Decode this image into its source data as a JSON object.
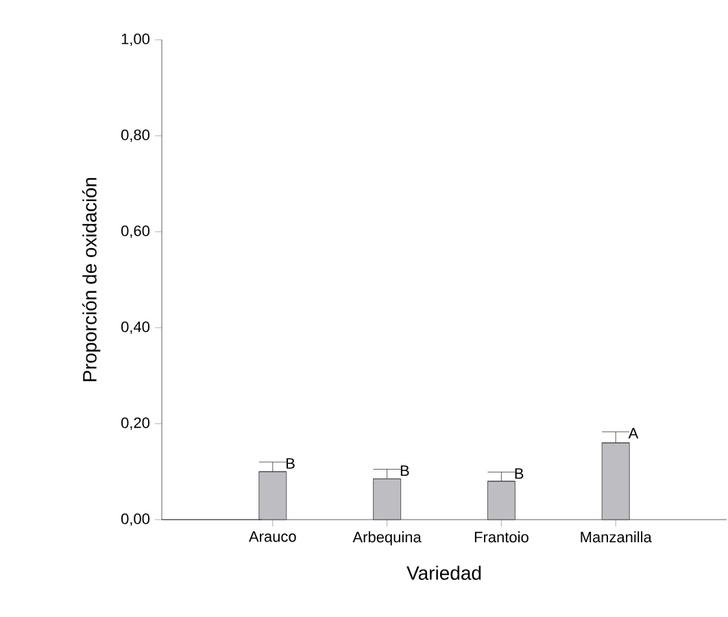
{
  "chart_data": {
    "type": "bar",
    "xlabel": "Variedad",
    "ylabel": "Proporción de oxidación",
    "categories": [
      "Arauco",
      "Arbequina",
      "Frantoio",
      "Manzanilla"
    ],
    "values": [
      0.1,
      0.085,
      0.08,
      0.16
    ],
    "errors": [
      [
        0.1,
        0.12
      ],
      [
        0.085,
        0.105
      ],
      [
        0.08,
        0.099
      ],
      [
        0.16,
        0.183
      ]
    ],
    "color": "#bebec2",
    "ylim": [
      0,
      1
    ],
    "yticks": [
      {
        "value": 0,
        "label": "0,00"
      },
      {
        "value": 0.2,
        "label": "0,20"
      },
      {
        "value": 0.4,
        "label": "0,40"
      },
      {
        "value": 0.6,
        "label": "0,60"
      },
      {
        "value": 0.8,
        "label": "0,80"
      },
      {
        "value": 1,
        "label": "1,00"
      }
    ],
    "annotations": [
      {
        "text": "B",
        "x": "Arauco",
        "y": 0.12
      },
      {
        "text": "B",
        "x": "Arbequina",
        "y": 0.105
      },
      {
        "text": "B",
        "x": "Frantoio",
        "y": 0.099
      },
      {
        "text": "A",
        "x": "Manzanilla",
        "y": 0.183
      }
    ],
    "grid": false
  }
}
